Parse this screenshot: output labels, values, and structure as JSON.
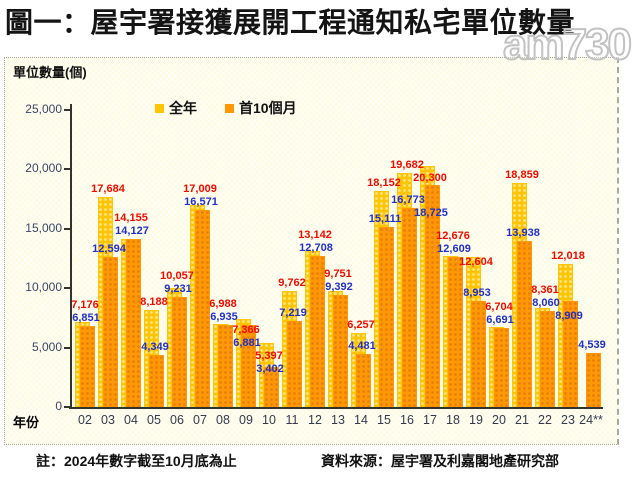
{
  "title": "圖一：屋宇署接獲展開工程通知私宅單位數量",
  "watermark": "am730",
  "panel": {
    "y_axis_title": "單位數量(個)",
    "x_axis_title": "年份"
  },
  "legend": [
    {
      "label": "全年",
      "color": "#ffc503"
    },
    {
      "label": "首10個月",
      "color": "#ff9804"
    }
  ],
  "footer": {
    "note": "註：2024年數字截至10月底為止",
    "source": "資料來源：屋宇署及利嘉閣地產研究部"
  },
  "colors": {
    "full_year_bar": "#ffc503",
    "ten_month_bar": "#ff9804",
    "full_year_label": "#f00a00",
    "ten_month_label": "#2030c8",
    "panel_bg": "#fdfbe2",
    "axis": "#33332e"
  },
  "chart_data": {
    "type": "bar",
    "title": "圖一：屋宇署接獲展開工程通知私宅單位數量",
    "xlabel": "年份",
    "ylabel": "單位數量(個)",
    "ylim": [
      0,
      25000
    ],
    "ytick_labels": [
      "0",
      "5,000",
      "10,000",
      "15,000",
      "20,000",
      "25,000"
    ],
    "grid": false,
    "legend_position": "top",
    "categories": [
      "02",
      "03",
      "04",
      "05",
      "06",
      "07",
      "08",
      "09",
      "10",
      "11",
      "12",
      "13",
      "14",
      "15",
      "16",
      "17",
      "18",
      "19",
      "20",
      "21",
      "22",
      "23",
      "24**"
    ],
    "series": [
      {
        "name": "全年",
        "values": [
          7176,
          17684,
          14155,
          8188,
          10057,
          17009,
          6988,
          7366,
          5397,
          9762,
          13142,
          9751,
          6257,
          18152,
          19682,
          20300,
          12676,
          12604,
          6704,
          18859,
          8361,
          12018,
          null
        ]
      },
      {
        "name": "首10個月",
        "values": [
          6851,
          12594,
          14127,
          4349,
          9231,
          16571,
          6935,
          6881,
          3402,
          7219,
          12708,
          9392,
          4481,
          15111,
          16773,
          18725,
          12609,
          8953,
          6691,
          13938,
          8060,
          8909,
          4539
        ]
      }
    ]
  }
}
